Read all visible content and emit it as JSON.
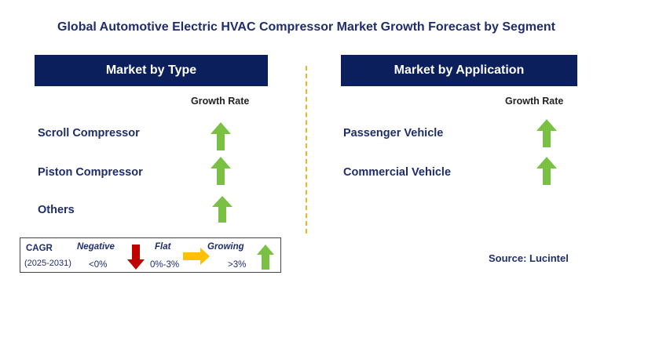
{
  "title": "Global Automotive Electric HVAC Compressor Market Growth Forecast by Segment",
  "chart_data": [
    {
      "type": "table",
      "title": "Market by Type",
      "column_header": "Growth Rate",
      "rows": [
        {
          "label": "Scroll Compressor",
          "growth": "Growing"
        },
        {
          "label": "Piston Compressor",
          "growth": "Growing"
        },
        {
          "label": "Others",
          "growth": "Growing"
        }
      ]
    },
    {
      "type": "table",
      "title": "Market by Application",
      "column_header": "Growth Rate",
      "rows": [
        {
          "label": "Passenger Vehicle",
          "growth": "Growing"
        },
        {
          "label": "Commercial Vehicle",
          "growth": "Growing"
        }
      ]
    }
  ],
  "legend": {
    "cagr_label": "CAGR",
    "period": "(2025-2031)",
    "negative": {
      "label": "Negative",
      "range": "<0%",
      "color": "#c00000"
    },
    "flat": {
      "label": "Flat",
      "range": "0%-3%",
      "color": "#ffc000"
    },
    "growing": {
      "label": "Growing",
      "range": ">3%",
      "color": "#7ac143"
    }
  },
  "source": "Source: Lucintel",
  "colors": {
    "header_bg": "#0b1f5c",
    "text": "#1f2d6b",
    "divider": "#f0b323"
  }
}
